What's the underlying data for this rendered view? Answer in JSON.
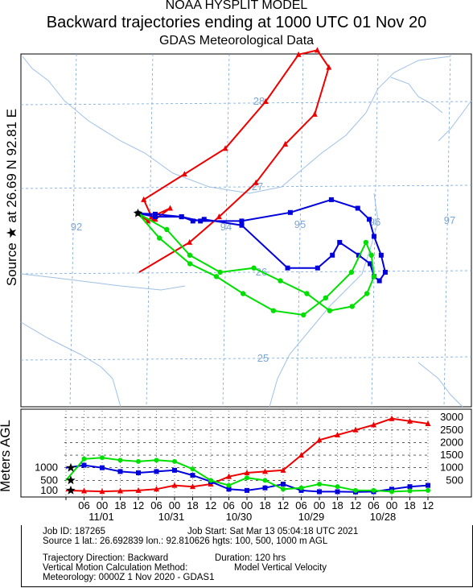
{
  "header": {
    "line1": "NOAA HYSPLIT MODEL",
    "line2": "Backward trajectories ending at 1000 UTC 01 Nov 20",
    "line3": "GDAS Meteorological Data"
  },
  "side_label": "Source ★ at 26.69 N 92.81 E",
  "agl_label": "Meters AGL",
  "map": {
    "lon_labels": [
      "92",
      "94",
      "95",
      "96",
      "97"
    ],
    "lat_labels": [
      "28",
      "27",
      "26",
      "25"
    ],
    "grid_color": "#7aa6d6",
    "border_color": "#9fc0e6"
  },
  "colors": {
    "red": "#ee0000",
    "blue": "#0000dd",
    "green": "#00e000"
  },
  "chart_data": [
    {
      "type": "line",
      "title": "Backward trajectories ending at 1000 UTC 01 Nov 20",
      "xlabel": "",
      "ylabel": "",
      "series": [
        {
          "color": "red",
          "x": [
            92.82,
            93.5,
            93.9,
            94.4,
            94.8,
            95.2,
            95.4,
            95.25,
            95.0,
            94.55,
            94.0,
            93.45,
            92.9,
            93.0,
            93.25,
            93.05,
            92.95,
            92.82
          ],
          "y": [
            26.0,
            26.35,
            26.65,
            27.05,
            27.5,
            27.85,
            28.4,
            28.6,
            28.55,
            28.0,
            27.45,
            27.15,
            26.85,
            26.65,
            26.75,
            26.62,
            26.6,
            26.69
          ]
        },
        {
          "color": "blue",
          "x": [
            92.82,
            93.05,
            93.4,
            93.65,
            94.2,
            94.85,
            95.4,
            95.75,
            95.9,
            95.96,
            96.05,
            96.1,
            96.02,
            95.95,
            95.9,
            95.75,
            95.5,
            95.4,
            95.2,
            94.8,
            94.2,
            93.7,
            93.55,
            93.4,
            93.05,
            92.82
          ],
          "y": [
            26.69,
            26.68,
            26.65,
            26.6,
            26.6,
            26.7,
            26.85,
            26.75,
            26.62,
            26.42,
            26.2,
            26.0,
            25.9,
            25.95,
            26.1,
            26.2,
            26.35,
            26.2,
            26.05,
            26.05,
            26.55,
            26.62,
            26.6,
            26.65,
            26.65,
            26.69
          ]
        },
        {
          "color": "green",
          "x": [
            92.82,
            93.2,
            93.5,
            93.9,
            94.35,
            94.7,
            95.05,
            95.35,
            95.65,
            95.85,
            95.95,
            95.92,
            95.85,
            95.65,
            95.3,
            95.0,
            94.6,
            94.2,
            93.85,
            93.5,
            93.1,
            92.82
          ],
          "y": [
            26.69,
            26.5,
            26.2,
            26.0,
            26.05,
            25.9,
            25.75,
            25.55,
            25.6,
            25.75,
            25.95,
            26.2,
            26.35,
            26.0,
            25.7,
            25.5,
            25.55,
            25.75,
            25.95,
            26.1,
            26.4,
            26.69
          ]
        }
      ]
    },
    {
      "type": "line",
      "ylabel": "Meters AGL",
      "yticks": [
        500,
        1000,
        1500,
        2000,
        2500,
        3000
      ],
      "left_ticks": [
        100,
        500,
        1000
      ],
      "ylim": [
        0,
        3100
      ],
      "x_hour_labels": [
        "06",
        "00",
        "18",
        "12",
        "06",
        "00",
        "18",
        "12",
        "06",
        "00",
        "18",
        "12",
        "06",
        "00",
        "18",
        "12",
        "06",
        "00",
        "18",
        "12"
      ],
      "date_labels": [
        "11/01",
        "10/31",
        "10/30",
        "10/29",
        "10/28"
      ],
      "series": [
        {
          "color": "red",
          "hours": [
            0,
            6,
            12,
            18,
            24,
            30,
            36,
            42,
            48,
            54,
            60,
            66,
            72,
            78,
            84,
            90,
            96,
            102,
            108,
            114,
            120
          ],
          "values": [
            100,
            80,
            60,
            80,
            100,
            150,
            300,
            250,
            350,
            650,
            800,
            850,
            900,
            1500,
            2100,
            2300,
            2500,
            2700,
            2950,
            2850,
            2750
          ]
        },
        {
          "color": "blue",
          "hours": [
            0,
            6,
            12,
            18,
            24,
            30,
            36,
            42,
            48,
            54,
            60,
            66,
            72,
            78,
            84,
            90,
            96,
            102,
            108,
            114,
            120
          ],
          "values": [
            1000,
            1100,
            1000,
            850,
            800,
            850,
            900,
            700,
            450,
            150,
            100,
            200,
            350,
            100,
            50,
            50,
            40,
            50,
            150,
            250,
            300
          ]
        },
        {
          "color": "green",
          "hours": [
            0,
            6,
            12,
            18,
            24,
            30,
            36,
            42,
            48,
            54,
            60,
            66,
            72,
            78,
            84,
            90,
            96,
            102,
            108,
            114,
            120
          ],
          "values": [
            500,
            1350,
            1400,
            1300,
            1250,
            1300,
            1250,
            950,
            500,
            300,
            600,
            500,
            150,
            200,
            350,
            250,
            100,
            100,
            50,
            80,
            100
          ]
        }
      ]
    }
  ],
  "footer": {
    "job_id": "Job ID: 187265",
    "job_start": "Job Start: Sat Mar 13 05:04:18 UTC 2021",
    "source": "Source 1 lat.: 26.692839  lon.: 92.810626  hgts: 100, 500, 1000 m AGL",
    "direction": "Trajectory Direction: Backward",
    "duration": "Duration: 120 hrs",
    "vertical": "Vertical Motion Calculation Method:",
    "vertical_val": "Model Vertical Velocity",
    "meteorology": "Meteorology: 0000Z  1 Nov 2020 - GDAS1"
  }
}
